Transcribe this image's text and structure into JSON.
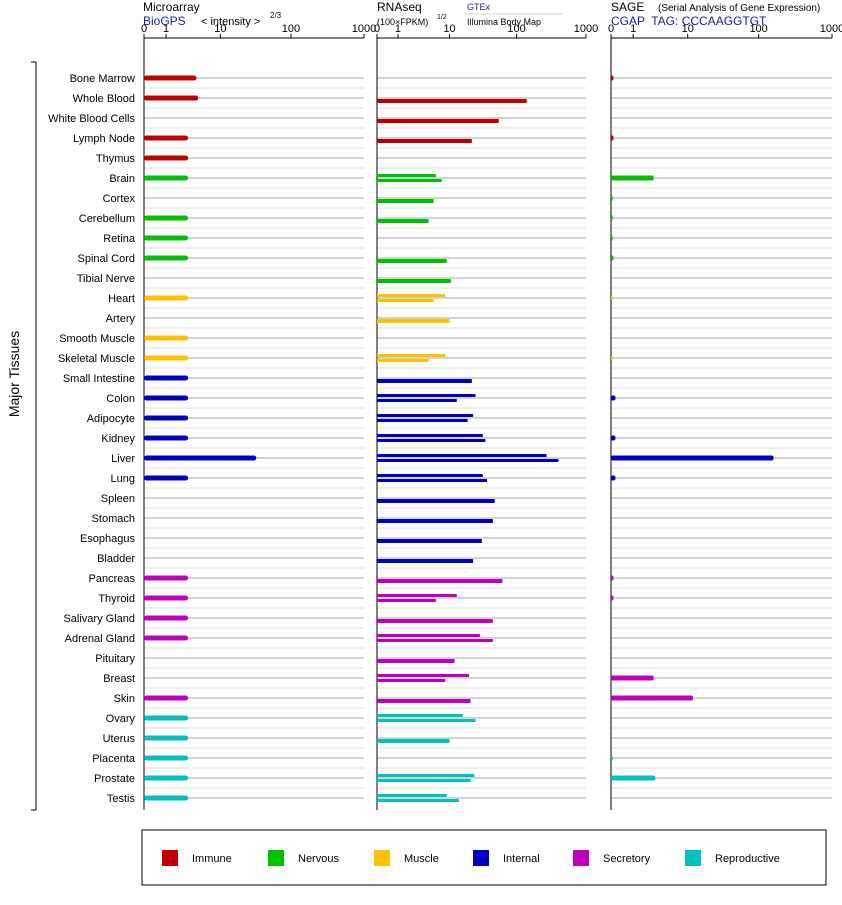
{
  "side_label": "Major Tissues",
  "panels": {
    "microarray": {
      "title": "Microarray",
      "source": "BioGPS",
      "scale_label": "< intensity >",
      "scale_exp": "2/3"
    },
    "rnaseq": {
      "title": "RNAseq",
      "units": "(100×FPKM)",
      "units_exp": "1/2",
      "legend_gtex": "GTEx",
      "legend_ibm": "Illumina Body Map",
      "legend_gtex_color": "#1a1aa6"
    },
    "sage": {
      "title": "SAGE",
      "subtitle": "(Serial Analysis of Gene Expression)",
      "tag": "CGAP  TAG: CCCAAGGTGT"
    }
  },
  "legend": [
    {
      "label": "Immune",
      "color": "#c00000"
    },
    {
      "label": "Nervous",
      "color": "#00c000"
    },
    {
      "label": "Muscle",
      "color": "#ffc000"
    },
    {
      "label": "Internal",
      "color": "#0000c0"
    },
    {
      "label": "Secretory",
      "color": "#c000c0"
    },
    {
      "label": "Reproductive",
      "color": "#00c0c0"
    }
  ],
  "chart_data": {
    "type": "bar",
    "orientation": "horizontal",
    "tick_labels": [
      "0",
      "1",
      "10",
      "100",
      "1000"
    ],
    "tick_values": [
      0,
      1,
      10,
      100,
      1000
    ],
    "xlim": [
      0,
      1000
    ],
    "categories": [
      "Bone Marrow",
      "Whole Blood",
      "White Blood Cells",
      "Lymph Node",
      "Thymus",
      "Brain",
      "Cortex",
      "Cerebellum",
      "Retina",
      "Spinal Cord",
      "Tibial Nerve",
      "Heart",
      "Artery",
      "Smooth Muscle",
      "Skeletal Muscle",
      "Small Intestine",
      "Colon",
      "Adipocyte",
      "Kidney",
      "Liver",
      "Lung",
      "Spleen",
      "Stomach",
      "Esophagus",
      "Bladder",
      "Pancreas",
      "Thyroid",
      "Salivary Gland",
      "Adrenal Gland",
      "Pituitary",
      "Breast",
      "Skin",
      "Ovary",
      "Uterus",
      "Placenta",
      "Prostate",
      "Testis"
    ],
    "groups": [
      0,
      0,
      0,
      0,
      0,
      1,
      1,
      1,
      1,
      1,
      1,
      2,
      2,
      2,
      2,
      3,
      3,
      3,
      3,
      3,
      3,
      3,
      3,
      3,
      3,
      4,
      4,
      4,
      4,
      4,
      4,
      4,
      5,
      5,
      5,
      5,
      5
    ],
    "microarray": [
      4.2,
      4.5,
      null,
      3.0,
      3.0,
      3.0,
      null,
      3.0,
      3.0,
      3.0,
      null,
      3.0,
      null,
      3.0,
      3.0,
      3.0,
      3.0,
      3.0,
      3.0,
      33,
      3.0,
      null,
      null,
      null,
      null,
      3.0,
      3.0,
      3.0,
      3.0,
      null,
      null,
      3.0,
      3.0,
      3.0,
      3.0,
      3.0,
      3.0
    ],
    "rnaseq_gtex": [
      null,
      140,
      null,
      null,
      null,
      null,
      null,
      null,
      null,
      null,
      null,
      null,
      null,
      null,
      null,
      null,
      null,
      null,
      null,
      270,
      null,
      null,
      null,
      null,
      null,
      null,
      null,
      null,
      null,
      null,
      null,
      null,
      null,
      null,
      null,
      null,
      null
    ],
    "rnaseq_ibm": [
      null,
      null,
      null,
      null,
      null,
      null,
      null,
      null,
      null,
      null,
      null,
      null,
      null,
      null,
      null,
      null,
      null,
      null,
      null,
      null,
      null,
      null,
      null,
      null,
      null,
      null,
      null,
      null,
      null,
      null,
      null,
      null,
      null,
      null,
      null,
      null,
      null
    ],
    "rnaseq_values": [
      [],
      [
        140
      ],
      [
        55
      ],
      [
        22
      ],
      [],
      [
        6,
        7.5
      ],
      [
        5.5
      ],
      [
        4.5
      ],
      [],
      [
        9
      ],
      [
        10.5
      ],
      [
        8.5,
        5.5
      ],
      [
        10
      ],
      [],
      [
        8.5,
        4.5
      ],
      [
        22
      ],
      [
        25,
        13
      ],
      [
        23,
        19
      ],
      [
        32,
        35
      ],
      [
        270,
        400
      ],
      [
        32,
        37
      ],
      [
        48
      ],
      [
        45
      ],
      [
        31
      ],
      [
        23
      ],
      [
        62
      ],
      [
        13,
        6
      ],
      [
        45
      ],
      [
        29,
        45
      ],
      [
        12
      ],
      [
        20,
        8.5
      ],
      [
        21
      ],
      [
        16,
        25
      ],
      [
        10
      ],
      [],
      [
        24,
        21
      ],
      [
        9,
        14
      ]
    ],
    "sage": [
      0.08,
      null,
      null,
      0.08,
      null,
      2.8,
      0.05,
      0.05,
      0.05,
      0.08,
      null,
      0.03,
      null,
      null,
      0.03,
      null,
      0.15,
      null,
      0.15,
      160,
      0.15,
      null,
      null,
      null,
      null,
      0.08,
      0.08,
      null,
      null,
      null,
      2.8,
      12,
      null,
      null,
      0.05,
      3.0,
      null
    ]
  }
}
